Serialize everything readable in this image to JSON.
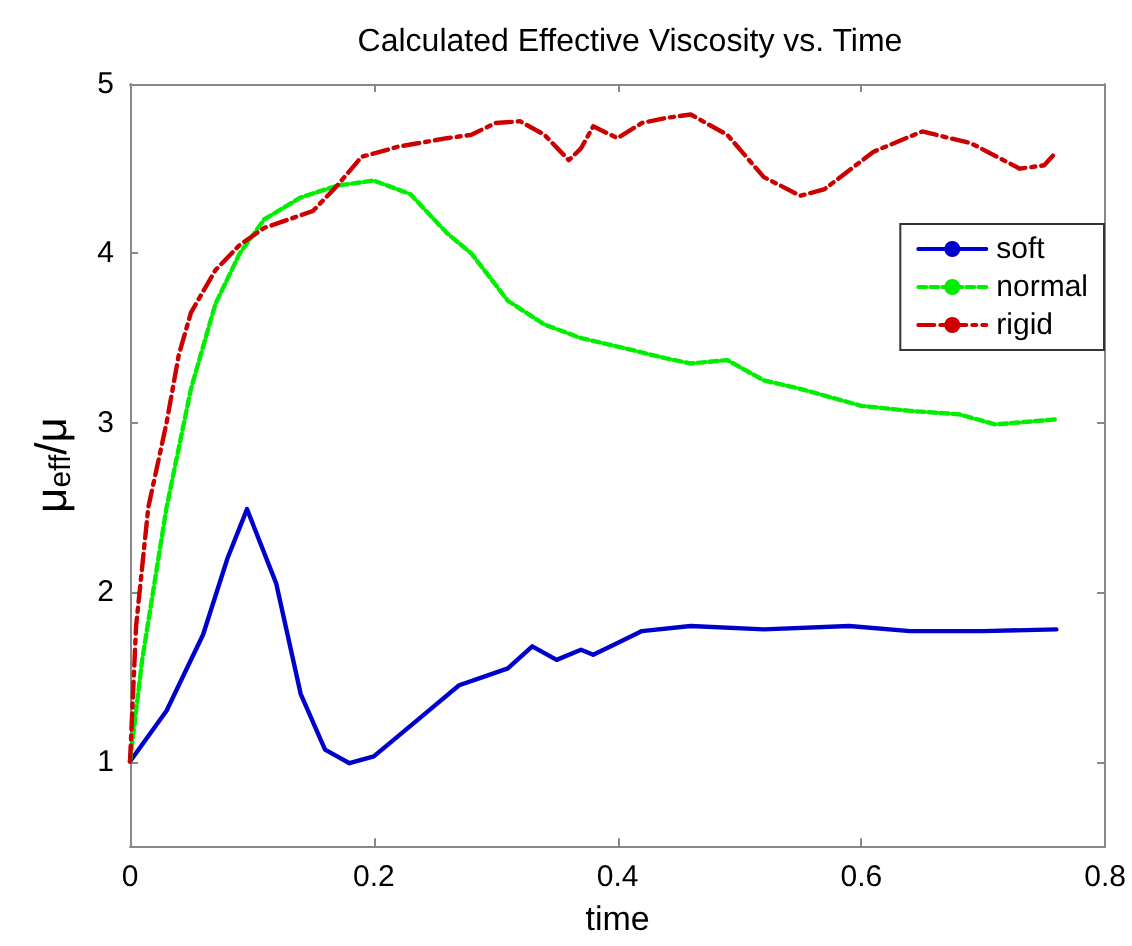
{
  "chart_data": {
    "type": "line",
    "title": "Calculated Effective Viscosity vs. Time",
    "xlabel": "time",
    "ylabel": "μ$_{eff}$/μ",
    "xlim": [
      0,
      0.8
    ],
    "xticks": [
      0,
      0.2,
      0.4,
      0.6,
      0.8
    ],
    "ylim": [
      0.5,
      5
    ],
    "yticks": [
      1,
      2,
      3,
      4,
      5
    ],
    "grid": false,
    "legend": "right",
    "marker": "none",
    "series": [
      {
        "name": "soft",
        "color": "#0000cc",
        "line_style": "solid",
        "x": [
          0,
          0.03,
          0.06,
          0.08,
          0.096,
          0.12,
          0.14,
          0.16,
          0.18,
          0.2,
          0.22,
          0.25,
          0.27,
          0.29,
          0.31,
          0.33,
          0.35,
          0.37,
          0.38,
          0.4,
          0.42,
          0.46,
          0.52,
          0.59,
          0.64,
          0.7,
          0.76
        ],
        "values": [
          1.0,
          1.3,
          1.75,
          2.2,
          2.49,
          2.05,
          1.4,
          1.07,
          0.99,
          1.03,
          1.15,
          1.33,
          1.45,
          1.5,
          1.55,
          1.68,
          1.6,
          1.66,
          1.63,
          1.7,
          1.77,
          1.8,
          1.78,
          1.8,
          1.77,
          1.77,
          1.78
        ]
      },
      {
        "name": "normal",
        "color": "#00ee00",
        "line_style": "dotted",
        "x": [
          0,
          0.01,
          0.03,
          0.05,
          0.07,
          0.09,
          0.11,
          0.14,
          0.17,
          0.2,
          0.23,
          0.26,
          0.28,
          0.31,
          0.34,
          0.37,
          0.4,
          0.44,
          0.46,
          0.49,
          0.52,
          0.55,
          0.6,
          0.64,
          0.68,
          0.71,
          0.76
        ],
        "values": [
          1.0,
          1.6,
          2.5,
          3.2,
          3.7,
          4.0,
          4.2,
          4.33,
          4.4,
          4.43,
          4.35,
          4.12,
          4.0,
          3.72,
          3.58,
          3.5,
          3.45,
          3.38,
          3.35,
          3.37,
          3.25,
          3.2,
          3.1,
          3.07,
          3.05,
          2.99,
          3.02
        ]
      },
      {
        "name": "rigid",
        "color": "#cc0000",
        "line_style": "dashed",
        "x": [
          0,
          0.005,
          0.015,
          0.03,
          0.04,
          0.05,
          0.07,
          0.09,
          0.11,
          0.13,
          0.15,
          0.17,
          0.19,
          0.22,
          0.26,
          0.28,
          0.3,
          0.32,
          0.34,
          0.36,
          0.37,
          0.38,
          0.4,
          0.42,
          0.44,
          0.46,
          0.49,
          0.52,
          0.55,
          0.57,
          0.61,
          0.65,
          0.69,
          0.73,
          0.75,
          0.76
        ],
        "values": [
          1.0,
          1.8,
          2.5,
          3.0,
          3.4,
          3.65,
          3.9,
          4.05,
          4.15,
          4.2,
          4.25,
          4.4,
          4.57,
          4.63,
          4.68,
          4.7,
          4.77,
          4.78,
          4.7,
          4.55,
          4.62,
          4.75,
          4.68,
          4.77,
          4.8,
          4.82,
          4.7,
          4.45,
          4.34,
          4.38,
          4.6,
          4.72,
          4.65,
          4.5,
          4.52,
          4.6
        ]
      }
    ]
  }
}
